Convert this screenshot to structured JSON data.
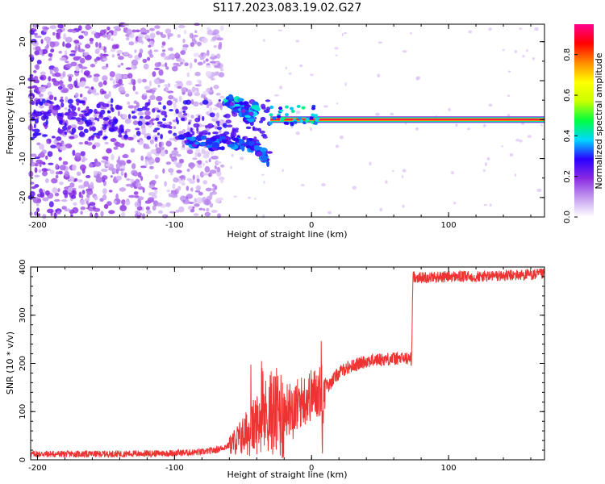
{
  "title": "S117.2023.083.19.02.G27",
  "colors": {
    "line": "#ee3333",
    "frame": "#000000"
  },
  "chart_data": [
    {
      "type": "heatmap",
      "xlabel": "Height of straight line (km)",
      "ylabel": "Frequency (Hz)",
      "xlim": [
        -205,
        170
      ],
      "ylim": [
        -25,
        24.5
      ],
      "xticks": [
        -200,
        -100,
        0,
        100
      ],
      "xtick_labels": [
        "-200",
        "-100",
        "0",
        "100"
      ],
      "yticks": [
        -20,
        -10,
        0,
        10,
        20
      ],
      "ytick_labels": [
        "-20",
        "-10",
        "0",
        "10",
        "20"
      ],
      "colorbar": {
        "label": "Normalized spectral amplitude",
        "range": [
          0,
          0.95
        ],
        "ticks": [
          0.0,
          0.2,
          0.4,
          0.6,
          0.8
        ],
        "tick_labels": [
          "0.0",
          "0.2",
          "0.4",
          "0.6",
          "0.8"
        ],
        "colormap": [
          "#ffffff",
          "#c49cf0",
          "#8a2be2",
          "#2a00ff",
          "#00d8ff",
          "#00ff40",
          "#c8ff00",
          "#ffff00",
          "#ff8c00",
          "#ff0000",
          "#ff0090"
        ]
      },
      "features": [
        {
          "name": "noise",
          "x_range": [
            -205,
            -65
          ],
          "y_range": [
            -25,
            24.5
          ],
          "amplitude": 0.15
        },
        {
          "name": "lower-branch",
          "x": [
            -95,
            -80,
            -65,
            -50,
            -40,
            -32
          ],
          "y": [
            -5,
            -6,
            -6,
            -6,
            -7,
            -10
          ],
          "amplitude": 0.3
        },
        {
          "name": "upper-branch",
          "x": [
            -62,
            -56,
            -50,
            -45,
            -40
          ],
          "y": [
            5,
            4,
            3,
            1,
            3
          ],
          "amplitude": 0.35
        },
        {
          "name": "carrier",
          "x_range": [
            -30,
            170
          ],
          "y": 0,
          "amplitude": 0.9
        }
      ]
    },
    {
      "type": "line",
      "xlabel": "Height of straight line (km)",
      "ylabel": "SNR (10 * v/v)",
      "xlim": [
        -205,
        170
      ],
      "ylim": [
        0,
        400
      ],
      "xticks": [
        -200,
        -100,
        0,
        100
      ],
      "xtick_labels": [
        "-200",
        "-100",
        "0",
        "100"
      ],
      "yticks": [
        0,
        100,
        200,
        300,
        400
      ],
      "ytick_labels": [
        "0",
        "100",
        "200",
        "300",
        "400"
      ],
      "series": [
        {
          "x": [
            -205,
            -180,
            -150,
            -120,
            -100,
            -80,
            -70,
            -60,
            -50,
            -45,
            -40,
            -35,
            -30,
            -25,
            -20,
            -15,
            -10,
            -5,
            0,
            5,
            8,
            10,
            12,
            15,
            20,
            25,
            30,
            40,
            50,
            60,
            70,
            73,
            74,
            80,
            100,
            120,
            140,
            170
          ],
          "y": [
            12,
            12,
            12,
            13,
            14,
            16,
            20,
            30,
            50,
            60,
            75,
            90,
            100,
            95,
            100,
            110,
            115,
            125,
            135,
            140,
            145,
            160,
            150,
            165,
            180,
            190,
            195,
            205,
            208,
            210,
            210,
            210,
            380,
            378,
            380,
            380,
            382,
            385
          ]
        }
      ]
    }
  ]
}
